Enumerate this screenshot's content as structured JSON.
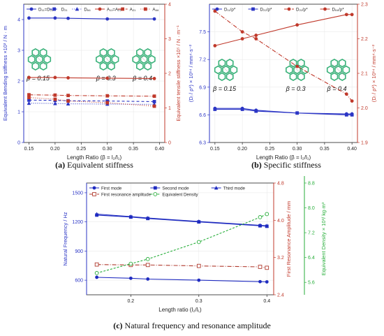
{
  "chart_data": [
    {
      "id": "a",
      "type": "line",
      "caption_letter": "(a)",
      "caption_text": " Equivalent stiffness",
      "xlabel": "Length Ratio (β = l₂/l₁)",
      "ylabel_left": "Equivalent Bending stiffness ×10³ / N · m",
      "ylabel_right": "Equivalent tensile stiffness ×10⁵ / N · m⁻¹",
      "xlim": [
        0.14,
        0.41
      ],
      "ylim_left": [
        0,
        4.5
      ],
      "ylim_right": [
        0,
        4
      ],
      "x_ticks": [
        0.15,
        0.2,
        0.25,
        0.3,
        0.35,
        0.4
      ],
      "x_tick_labels": [
        "0.15",
        "0.20",
        "0.25",
        "0.30",
        "0.35",
        "0.40"
      ],
      "y_left_ticks": [
        0,
        1,
        2,
        3,
        4
      ],
      "y_right_ticks": [
        0,
        1,
        2,
        3,
        4
      ],
      "insets": [
        {
          "label": "β = 0.15",
          "x": 0.17
        },
        {
          "label": "β = 0.3",
          "x": 0.3
        },
        {
          "label": "β = 0.4",
          "x": 0.37
        }
      ],
      "x": [
        0.15,
        0.2,
        0.225,
        0.3,
        0.39
      ],
      "series": [
        {
          "name": "D₁₁=D₂₂",
          "axis": "left",
          "color": "#2b35c5",
          "marker": "circle",
          "dash": "",
          "values": [
            4.05,
            4.05,
            4.04,
            4.02,
            4.02
          ]
        },
        {
          "name": "D₂₁",
          "axis": "left",
          "color": "#2b35c5",
          "marker": "square",
          "dash": "4,3",
          "values": [
            1.38,
            1.37,
            1.36,
            1.35,
            1.33
          ]
        },
        {
          "name": "D₆₆",
          "axis": "left",
          "color": "#2b35c5",
          "marker": "triangle",
          "dash": "1,2",
          "values": [
            1.28,
            1.27,
            1.26,
            1.25,
            1.24
          ]
        },
        {
          "name": "A₁₁=A₂₂",
          "axis": "right",
          "color": "#c0392b",
          "marker": "circle",
          "dash": "",
          "values": [
            1.88,
            1.88,
            1.87,
            1.86,
            1.85
          ]
        },
        {
          "name": "A₂₁",
          "axis": "right",
          "color": "#c0392b",
          "marker": "square",
          "dash": "6,2,1,2",
          "values": [
            1.38,
            1.37,
            1.36,
            1.35,
            1.34
          ]
        },
        {
          "name": "A₆₆",
          "axis": "right",
          "color": "#c0392b",
          "marker": "square",
          "dash": "1,2",
          "values": [
            1.3,
            1.25,
            1.2,
            1.15,
            1.05
          ]
        }
      ]
    },
    {
      "id": "b",
      "type": "line",
      "caption_letter": "(b)",
      "caption_text": " Specific stiffness",
      "xlabel": "Length Ratio (β = l₂/l₁)",
      "ylabel_left": "(Dᵢ / ρ*) × 10¹⁴ / mm⁴·s⁻²",
      "ylabel_right": "(Dᵢ / ρ*) × 10¹⁴ / mm⁴·s⁻²",
      "xlim": [
        0.14,
        0.41
      ],
      "ylim_left": [
        6.3,
        7.8
      ],
      "ylim_right": [
        1.9,
        2.3
      ],
      "x_ticks": [
        0.15,
        0.2,
        0.25,
        0.3,
        0.35,
        0.4
      ],
      "x_tick_labels": [
        "0.15",
        "0.20",
        "0.25",
        "0.30",
        "0.35",
        "0.40"
      ],
      "y_left_ticks": [
        6.3,
        6.6,
        6.9,
        7.2,
        7.5
      ],
      "y_left_tick_labels": [
        "6.3",
        "6.6",
        "6.9",
        "7.2",
        "7.5"
      ],
      "y_right_ticks": [
        1.9,
        2.0,
        2.1,
        2.2,
        2.3
      ],
      "y_right_tick_labels": [
        "1.9",
        "2.0",
        "2.1",
        "2.2",
        "2.3"
      ],
      "insets": [
        {
          "label": "β = 0.15",
          "x": 0.17
        },
        {
          "label": "β = 0.3",
          "x": 0.3
        },
        {
          "label": "β = 0.4",
          "x": 0.375
        }
      ],
      "x": [
        0.15,
        0.2,
        0.225,
        0.3,
        0.39,
        0.4
      ],
      "series": [
        {
          "name": "D₁₁/ρ*",
          "axis": "left",
          "color": "#2b35c5",
          "marker": "circle",
          "dash": "",
          "values": [
            6.67,
            6.67,
            6.65,
            6.62,
            6.61,
            6.61
          ]
        },
        {
          "name": "D₂₂/ρ*",
          "axis": "left",
          "color": "#2b35c5",
          "marker": "square",
          "dash": "",
          "values": [
            6.66,
            6.66,
            6.64,
            6.62,
            6.6,
            6.6
          ]
        },
        {
          "name": "D₂₁/ρ*",
          "axis": "right",
          "color": "#c0392b",
          "marker": "circle",
          "dash": "6,2,1,2",
          "values": [
            2.28,
            2.22,
            2.2,
            2.12,
            2.04,
            2.02
          ]
        },
        {
          "name": "D₆₆/ρ*",
          "axis": "right",
          "color": "#c0392b",
          "marker": "circle",
          "dash": "",
          "values": [
            2.18,
            2.2,
            2.21,
            2.24,
            2.27,
            2.27
          ]
        }
      ]
    },
    {
      "id": "c",
      "type": "line",
      "caption_letter": "(c)",
      "caption_text": " Natural frequency and resonance amplitude",
      "xlabel": "Length ratio (l₂/l₁)",
      "ylabel_left": "Natural Frequency / Hz",
      "ylabel_right": "First Resonance Amplitude / mm",
      "ylabel_right2": "Equivalent Density × 10³/ kg·m³",
      "xlim": [
        0.135,
        0.41
      ],
      "ylim_left": [
        450,
        1600
      ],
      "ylim_right": [
        2.4,
        4.8
      ],
      "ylim_right2": [
        5.2,
        8.8
      ],
      "x_ticks": [
        0.2,
        0.3,
        0.4
      ],
      "x_tick_labels": [
        "0.2",
        "0.3",
        "0.4"
      ],
      "y_left_ticks": [
        600,
        900,
        1200,
        1500
      ],
      "y_right_ticks": [
        2.4,
        3.2,
        4.0,
        4.8
      ],
      "y_right_tick_labels": [
        "2.4",
        "3.2",
        "4.0",
        "4.8"
      ],
      "y_right2_ticks": [
        5.6,
        6.4,
        7.2,
        8.0,
        8.8
      ],
      "y_right2_tick_labels": [
        "5.6",
        "6.4",
        "7.2",
        "8.0",
        "8.8"
      ],
      "x": [
        0.15,
        0.2,
        0.225,
        0.3,
        0.39,
        0.4
      ],
      "series": [
        {
          "name": "First mode",
          "axis": "left",
          "color": "#1f2bc0",
          "marker": "circle",
          "dash": "",
          "values": [
            630,
            620,
            612,
            600,
            585,
            583
          ]
        },
        {
          "name": "Second mode",
          "axis": "left",
          "color": "#1f2bc0",
          "marker": "square",
          "dash": "",
          "values": [
            1270,
            1250,
            1235,
            1200,
            1160,
            1155
          ]
        },
        {
          "name": "Third mode",
          "axis": "left",
          "color": "#1f2bc0",
          "marker": "triangle",
          "dash": "",
          "values": [
            1280,
            1255,
            1240,
            1205,
            1165,
            1160
          ]
        },
        {
          "name": "First resonance amplitude",
          "axis": "right",
          "color": "#b03a2e",
          "marker": "square_open",
          "dash": "6,2,1,2",
          "values": [
            3.05,
            3.04,
            3.04,
            3.02,
            3.0,
            2.98
          ]
        },
        {
          "name": "Equivalent Density",
          "axis": "right2",
          "color": "#27ae3a",
          "marker": "circle_open",
          "dash": "3,2",
          "values": [
            5.9,
            6.2,
            6.35,
            6.9,
            7.7,
            7.8
          ]
        }
      ]
    }
  ]
}
